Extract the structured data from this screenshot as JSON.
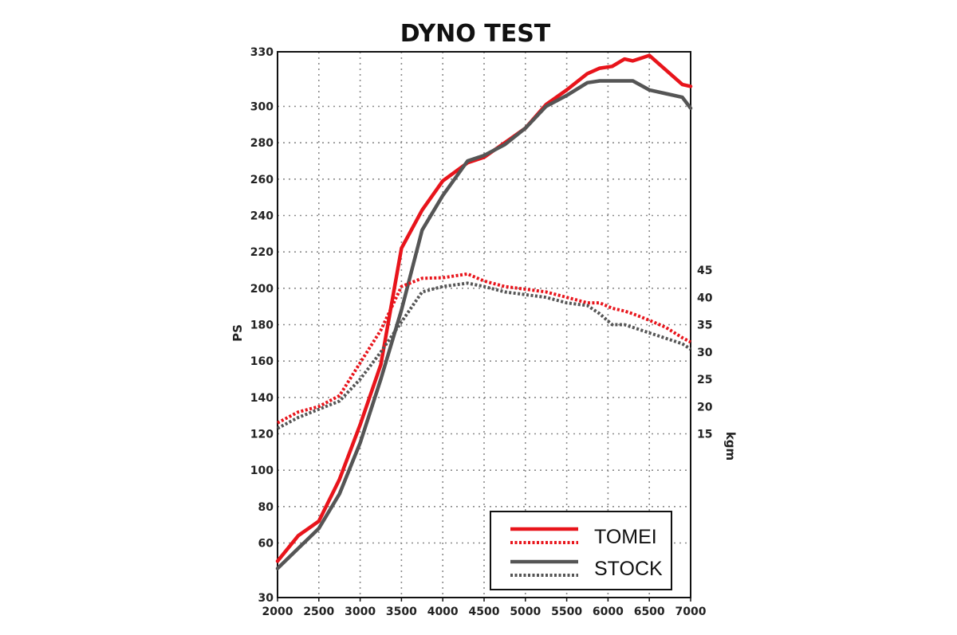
{
  "chart_data": {
    "type": "line",
    "title": "DYNO TEST",
    "xlabel": "",
    "ylabel_left": "PS",
    "ylabel_right": "kgm",
    "xlim": [
      2000,
      7000
    ],
    "ylim_left": [
      30,
      330
    ],
    "ylim_right": [
      -15,
      85
    ],
    "grid": true,
    "legend_position": "bottom-right",
    "x_ticks": [
      "2000",
      "2500",
      "3000",
      "3500",
      "4000",
      "4500",
      "5000",
      "5500",
      "6000",
      "6500",
      "7000"
    ],
    "y_left_ticks": [
      "30",
      "60",
      "80",
      "100",
      "120",
      "140",
      "160",
      "180",
      "200",
      "220",
      "240",
      "260",
      "280",
      "300",
      "330"
    ],
    "y_right_ticks": [
      "15",
      "20",
      "25",
      "30",
      "35",
      "40",
      "45"
    ],
    "legend": [
      {
        "label": "TOMEI",
        "color": "#e8141b"
      },
      {
        "label": "STOCK",
        "color": "#555555"
      }
    ],
    "series": [
      {
        "name": "TOMEI",
        "kind": "power",
        "axis": "left",
        "style": "solid",
        "color": "#e8141b",
        "x": [
          2000,
          2250,
          2500,
          2750,
          3000,
          3250,
          3500,
          3750,
          4000,
          4300,
          4500,
          4750,
          5000,
          5250,
          5500,
          5750,
          5900,
          6050,
          6200,
          6300,
          6500,
          6700,
          6900,
          7000
        ],
        "y": [
          50,
          64,
          72,
          95,
          125,
          158,
          222,
          243,
          259,
          269,
          272,
          280,
          288,
          301,
          309,
          318,
          321,
          322,
          326,
          325,
          328,
          320,
          312,
          311
        ]
      },
      {
        "name": "STOCK",
        "kind": "power",
        "axis": "left",
        "style": "solid",
        "color": "#555555",
        "x": [
          2000,
          2250,
          2500,
          2750,
          3000,
          3250,
          3500,
          3750,
          4000,
          4300,
          4500,
          4750,
          5000,
          5250,
          5500,
          5750,
          5900,
          6050,
          6200,
          6300,
          6500,
          6700,
          6900,
          7000
        ],
        "y": [
          46,
          57,
          68,
          87,
          115,
          150,
          188,
          232,
          251,
          270,
          273,
          279,
          288,
          300,
          306,
          313,
          314,
          314,
          314,
          314,
          309,
          307,
          305,
          299
        ]
      },
      {
        "name": "TOMEI",
        "kind": "torque",
        "axis": "right",
        "style": "dotted",
        "color": "#e8141b",
        "x": [
          2000,
          2250,
          2500,
          2750,
          3000,
          3250,
          3500,
          3750,
          4000,
          4300,
          4500,
          4750,
          5000,
          5250,
          5500,
          5750,
          5900,
          6050,
          6200,
          6300,
          6500,
          6700,
          6900,
          7000
        ],
        "y": [
          17,
          19,
          20,
          22,
          28,
          34,
          42,
          43.5,
          43.6,
          44.3,
          43,
          42,
          41.5,
          41,
          40,
          39,
          39,
          38,
          37.5,
          37,
          35.8,
          34.5,
          32.6,
          31.8
        ]
      },
      {
        "name": "STOCK",
        "kind": "torque",
        "axis": "right",
        "style": "dotted",
        "color": "#555555",
        "x": [
          2000,
          2250,
          2500,
          2750,
          3000,
          3250,
          3500,
          3750,
          4000,
          4300,
          4500,
          4750,
          5000,
          5250,
          5500,
          5750,
          5900,
          6050,
          6200,
          6300,
          6500,
          6700,
          6900,
          7000
        ],
        "y": [
          16,
          18,
          19.5,
          21,
          25,
          30,
          35.5,
          41,
          42,
          42.6,
          42,
          41,
          40.5,
          40,
          39,
          38.5,
          37,
          35,
          35,
          34.5,
          33.5,
          32.5,
          31.5,
          30.5
        ]
      }
    ]
  }
}
